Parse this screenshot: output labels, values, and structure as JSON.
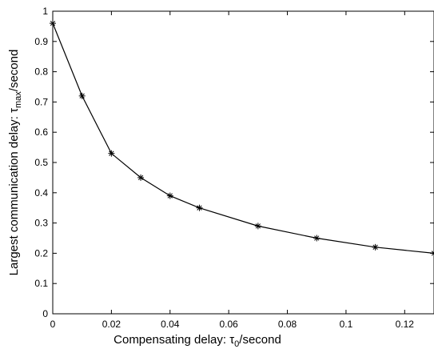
{
  "chart_data": {
    "type": "line",
    "marker": "*",
    "line_color": "#000000",
    "background": "#ffffff",
    "grid": false,
    "xlabel": {
      "prefix": "Compensating delay: ",
      "symbol": "τ",
      "subscript": "0",
      "suffix": "/second"
    },
    "ylabel": {
      "prefix": "Largest communication delay: ",
      "symbol": "τ",
      "subscript": "max",
      "suffix": "/second"
    },
    "xlim": [
      0,
      0.13
    ],
    "ylim": [
      0,
      1
    ],
    "x_ticks": [
      0,
      0.02,
      0.04,
      0.06,
      0.08,
      0.1,
      0.12
    ],
    "x_tick_labels": [
      "0",
      "0.02",
      "0.04",
      "0.06",
      "0.08",
      "0.1",
      "0.12"
    ],
    "y_ticks": [
      0,
      0.1,
      0.2,
      0.3,
      0.4,
      0.5,
      0.6,
      0.7,
      0.8,
      0.9,
      1
    ],
    "y_tick_labels": [
      "0",
      "0.1",
      "0.2",
      "0.3",
      "0.4",
      "0.5",
      "0.6",
      "0.7",
      "0.8",
      "0.9",
      "1"
    ],
    "series": [
      {
        "x": [
          0,
          0.01,
          0.02,
          0.03,
          0.04,
          0.05,
          0.07,
          0.09,
          0.11,
          0.13
        ],
        "y": [
          0.96,
          0.72,
          0.53,
          0.45,
          0.39,
          0.35,
          0.29,
          0.25,
          0.22,
          0.2
        ]
      }
    ]
  }
}
